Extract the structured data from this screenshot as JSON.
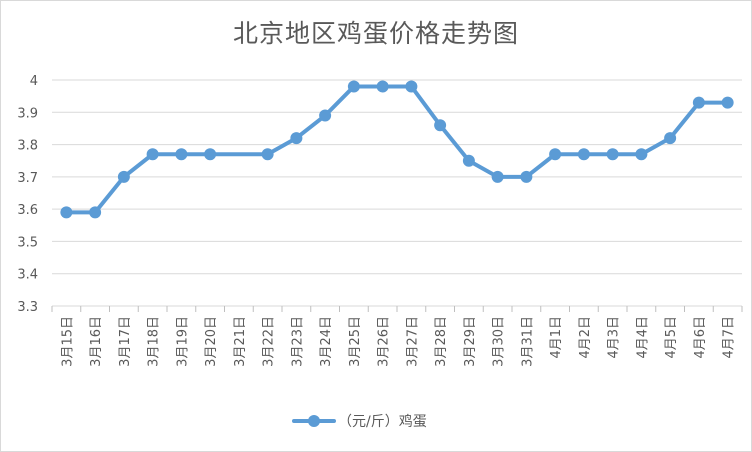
{
  "chart_data": {
    "type": "line",
    "title": "北京地区鸡蛋价格走势图",
    "categories": [
      "3月15日",
      "3月16日",
      "3月17日",
      "3月18日",
      "3月19日",
      "3月20日",
      "3月21日",
      "3月22日",
      "3月23日",
      "3月24日",
      "3月25日",
      "3月26日",
      "3月27日",
      "3月28日",
      "3月29日",
      "3月30日",
      "3月31日",
      "4月1日",
      "4月2日",
      "4月3日",
      "4月4日",
      "4月5日",
      "4月6日",
      "4月7日"
    ],
    "series": [
      {
        "name": "（元/斤）鸡蛋",
        "values": [
          3.59,
          3.59,
          3.7,
          3.77,
          3.77,
          3.77,
          null,
          3.77,
          3.82,
          3.89,
          3.98,
          3.98,
          3.98,
          3.86,
          3.75,
          3.7,
          3.7,
          3.77,
          3.77,
          3.77,
          3.77,
          3.82,
          3.93,
          3.93
        ]
      }
    ],
    "ylim": [
      3.3,
      4.0
    ],
    "yticks": [
      "3.3",
      "3.4",
      "3.5",
      "3.6",
      "3.7",
      "3.8",
      "3.9",
      "4"
    ],
    "grid": true,
    "legend_position": "bottom",
    "line_color": "#5b9bd5"
  }
}
